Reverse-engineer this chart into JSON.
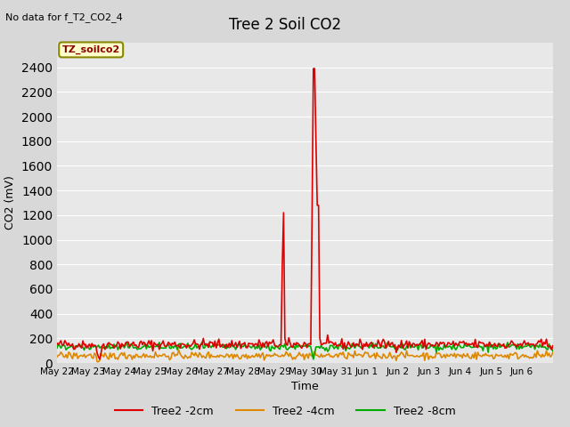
{
  "title": "Tree 2 Soil CO2",
  "no_data_text": "No data for f_T2_CO2_4",
  "xlabel": "Time",
  "ylabel": "CO2 (mV)",
  "ylim": [
    0,
    2600
  ],
  "yticks": [
    0,
    200,
    400,
    600,
    800,
    1000,
    1200,
    1400,
    1600,
    1800,
    2000,
    2200,
    2400
  ],
  "bg_color": "#e8e8e8",
  "plot_bg_color": "#e8e8e8",
  "series": {
    "Tree2 -2cm": {
      "color": "#dd0000",
      "lw": 1.2
    },
    "Tree2 -4cm": {
      "color": "#dd8800",
      "lw": 1.2
    },
    "Tree2 -8cm": {
      "color": "#00aa00",
      "lw": 1.2
    }
  },
  "legend_label": "TZ_soilco2",
  "legend_box_color": "#ffffcc",
  "legend_box_edge": "#888800",
  "x_tick_labels": [
    "May 22",
    "May 23",
    "May 24",
    "May 25",
    "May 26",
    "May 27",
    "May 28",
    "May 29",
    "May 30",
    "May 31",
    "Jun 1",
    "Jun 2",
    "Jun 3",
    "Jun 4",
    "Jun 5",
    "Jun 6"
  ],
  "n_days": 16
}
